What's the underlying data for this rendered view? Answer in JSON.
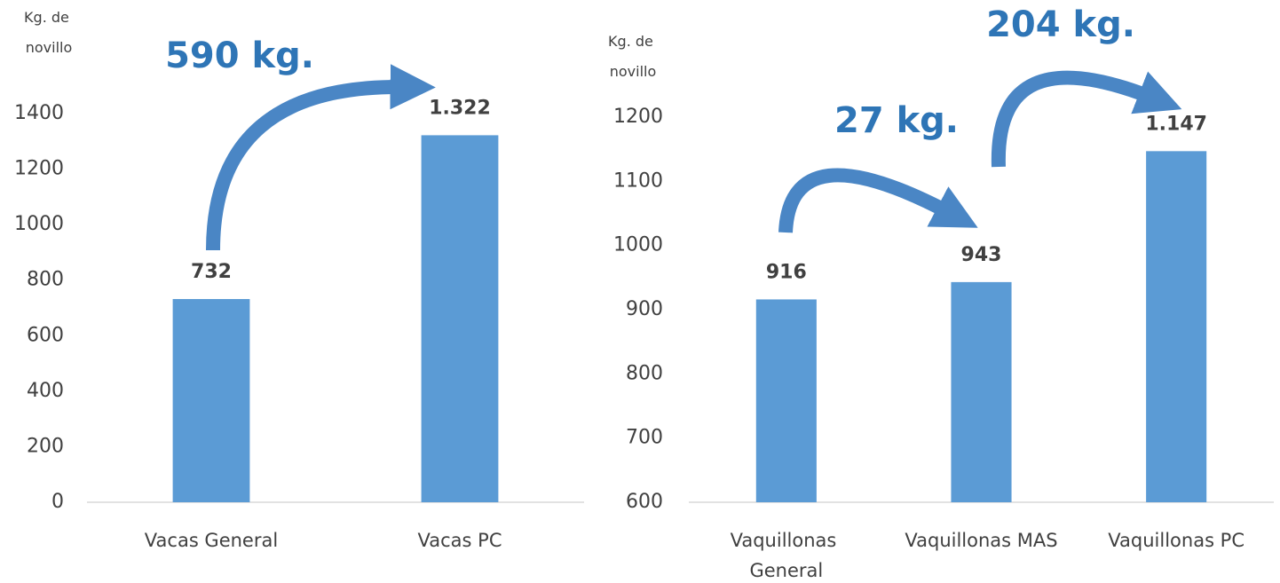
{
  "chart_data": [
    {
      "type": "bar",
      "y_label": "Kg. de novillo",
      "categories": [
        "Vacas General",
        "Vacas PC"
      ],
      "values": [
        732,
        1322
      ],
      "value_labels": [
        "732",
        "1.322"
      ],
      "color": "#5b9bd5",
      "ylim": [
        0,
        1400
      ],
      "yticks": [
        0,
        200,
        400,
        600,
        800,
        1000,
        1200,
        1400
      ],
      "annotations": [
        "590 kg."
      ]
    },
    {
      "type": "bar",
      "y_label": "Kg. de novillo",
      "categories": [
        "Vaquillonas General",
        "Vaquillonas MAS",
        "Vaquillonas PC"
      ],
      "values": [
        916,
        943,
        1147
      ],
      "value_labels": [
        "916",
        "943",
        "1.147"
      ],
      "color": "#5b9bd5",
      "ylim": [
        600,
        1200
      ],
      "yticks": [
        600,
        700,
        800,
        900,
        1000,
        1100,
        1200
      ],
      "annotations": [
        "27 kg.",
        "204 kg."
      ]
    }
  ]
}
